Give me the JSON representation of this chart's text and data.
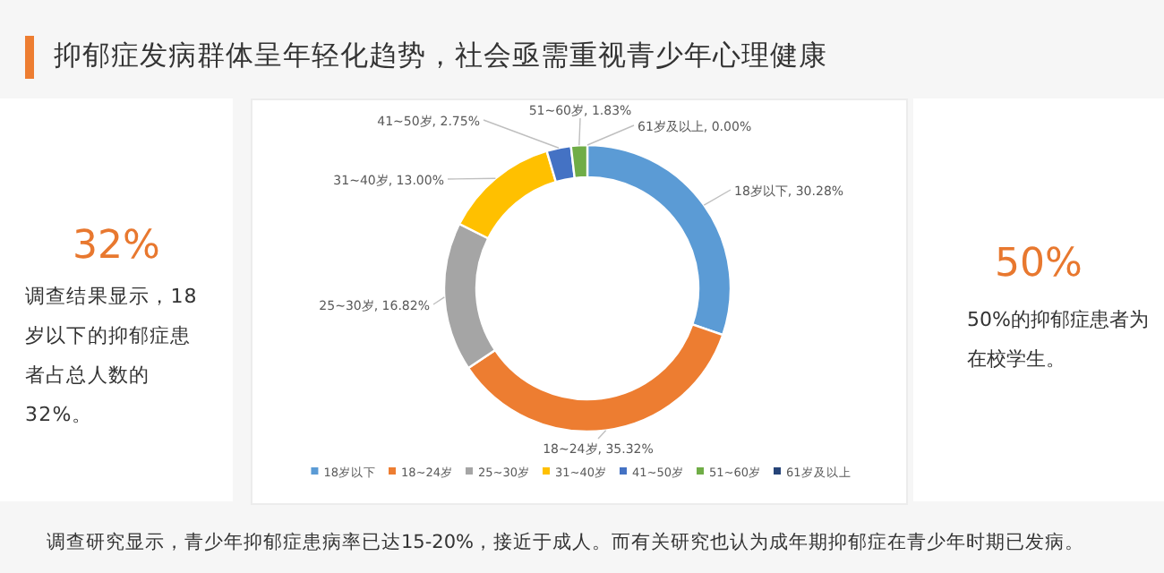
{
  "chart_data": [
    {
      "type": "other",
      "title": "32%",
      "annotations": [
        "调查结果显示，18岁以下的抑郁症患者占总人数的32%。"
      ]
    },
    {
      "type": "donut",
      "title": "抑郁症发病群体呈年轻化趋势，社会亟需重视青少年心理健康",
      "categories": [
        "18岁以下",
        "18~24岁",
        "25~30岁",
        "31~40岁",
        "41~50岁",
        "51~60岁",
        "61岁及以上"
      ],
      "values": [
        30.28,
        35.32,
        16.82,
        13.0,
        2.75,
        1.83,
        0.0
      ],
      "value_labels": [
        "18岁以下, 30.28%",
        "18~24岁, 35.32%",
        "25~30岁, 16.82%",
        "31~40岁, 13.00%",
        "41~50岁, 2.75%",
        "51~60岁, 1.83%",
        "61岁及以上, 0.00%"
      ],
      "colors": [
        "#5b9bd5",
        "#ed7d31",
        "#a5a5a5",
        "#ffc000",
        "#4472c4",
        "#70ad47",
        "#264478"
      ],
      "legend": "bottom",
      "annotations": [
        "调查研究显示，青少年抑郁症患病率已达15-20%，接近于成人。而有关研究也认为成年期抑郁症在青少年时期已发病。"
      ]
    },
    {
      "type": "other",
      "title": "50%",
      "annotations": [
        "50%的抑郁症患者为在校学生。"
      ]
    }
  ]
}
